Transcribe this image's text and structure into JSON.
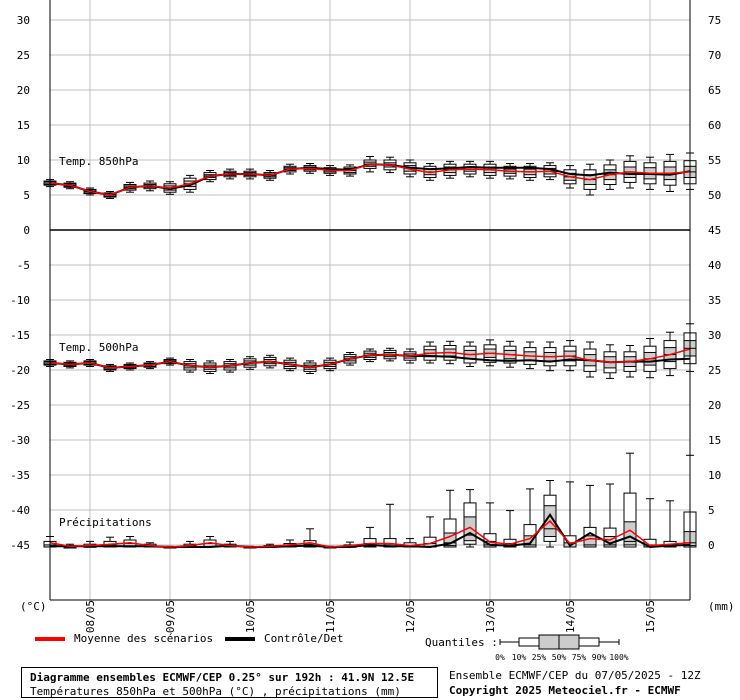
{
  "colors": {
    "mean": "#ff0000",
    "control": "#000000",
    "grid": "#c0c0c0",
    "box": "#cccccc"
  },
  "header": {
    "title": "Diagramme ensembles ECMWF/CEP 0.25° sur 192h : 41.9N 12.5E",
    "subtitle": "Températures 850hPa et 500hPa (°C) , précipitations (mm)",
    "run": "Ensemble ECMWF/CEP du 07/05/2025 - 12Z",
    "copyright": "Copyright 2025 Meteociel.fr - ECMWF"
  },
  "legend": {
    "mean": "Moyenne des scénarios",
    "control": "Contrôle/Det",
    "quantiles": "Quantiles :",
    "quantile_labels": [
      "0%",
      "10%",
      "25%",
      "50%",
      "75%",
      "90%",
      "100%"
    ]
  },
  "axes": {
    "left_unit": "(°C)",
    "right_unit": "(mm)",
    "left_ticks": [
      "30",
      "25",
      "20",
      "15",
      "10",
      "5",
      "0",
      "-5",
      "-10",
      "-15",
      "-20",
      "-25",
      "-30",
      "-35",
      "-40",
      "-45"
    ],
    "right_ticks": [
      "75",
      "70",
      "65",
      "60",
      "55",
      "50",
      "45",
      "40",
      "35",
      "30",
      "25",
      "20",
      "15",
      "10",
      "5",
      "0"
    ],
    "dates": [
      "08/05",
      "09/05",
      "10/05",
      "11/05",
      "12/05",
      "13/05",
      "14/05",
      "15/05"
    ]
  },
  "chart_data": {
    "type": "boxplot",
    "x_step_hours": 6,
    "panels": [
      {
        "name": "Temp. 850hPa",
        "unit": "°C",
        "control": [
          6.7,
          6.4,
          5.5,
          5.0,
          6.1,
          6.3,
          5.9,
          6.4,
          7.7,
          8.0,
          8.0,
          7.8,
          8.7,
          8.9,
          8.7,
          8.6,
          9.4,
          9.3,
          8.9,
          8.7,
          8.8,
          9.0,
          8.9,
          8.9,
          8.9,
          8.7,
          8.0,
          7.8,
          8.2,
          8.0,
          8.0,
          7.9,
          8.4
        ],
        "mean": [
          6.7,
          6.4,
          5.5,
          5.0,
          6.1,
          6.3,
          6.0,
          6.6,
          7.7,
          8.0,
          8.0,
          7.8,
          8.7,
          8.8,
          8.5,
          8.5,
          9.4,
          9.3,
          8.7,
          8.2,
          8.6,
          8.7,
          8.6,
          8.4,
          8.3,
          8.4,
          7.6,
          7.2,
          7.9,
          8.3,
          8.1,
          8.1,
          8.3
        ],
        "boxes": [
          [
            6.2,
            6.4,
            6.5,
            6.7,
            6.9,
            7.0,
            7.2
          ],
          [
            5.9,
            6.1,
            6.2,
            6.4,
            6.6,
            6.7,
            6.9
          ],
          [
            5.0,
            5.2,
            5.3,
            5.5,
            5.7,
            5.8,
            6.0
          ],
          [
            4.5,
            4.7,
            4.8,
            5.0,
            5.2,
            5.3,
            5.5
          ],
          [
            5.4,
            5.7,
            5.9,
            6.1,
            6.3,
            6.5,
            6.8
          ],
          [
            5.6,
            5.9,
            6.1,
            6.3,
            6.5,
            6.7,
            7.0
          ],
          [
            5.1,
            5.4,
            5.7,
            6.0,
            6.3,
            6.6,
            6.9
          ],
          [
            5.4,
            5.8,
            6.2,
            6.6,
            7.0,
            7.4,
            7.8
          ],
          [
            6.9,
            7.2,
            7.5,
            7.7,
            7.9,
            8.2,
            8.5
          ],
          [
            7.3,
            7.6,
            7.8,
            8.0,
            8.2,
            8.4,
            8.7
          ],
          [
            7.3,
            7.6,
            7.8,
            8.0,
            8.2,
            8.4,
            8.7
          ],
          [
            7.1,
            7.4,
            7.6,
            7.8,
            8.0,
            8.2,
            8.5
          ],
          [
            8.0,
            8.3,
            8.5,
            8.7,
            8.9,
            9.1,
            9.4
          ],
          [
            8.1,
            8.4,
            8.6,
            8.8,
            9.0,
            9.2,
            9.5
          ],
          [
            7.8,
            8.1,
            8.3,
            8.5,
            8.7,
            8.9,
            9.2
          ],
          [
            7.7,
            8.0,
            8.2,
            8.5,
            8.8,
            9.0,
            9.3
          ],
          [
            8.3,
            8.8,
            9.1,
            9.4,
            9.7,
            10.0,
            10.5
          ],
          [
            8.2,
            8.6,
            9.0,
            9.3,
            9.6,
            10.0,
            10.4
          ],
          [
            7.6,
            8.0,
            8.4,
            8.8,
            9.2,
            9.6,
            10.0
          ],
          [
            7.1,
            7.5,
            7.9,
            8.3,
            8.7,
            9.1,
            9.5
          ],
          [
            7.4,
            7.8,
            8.2,
            8.6,
            9.0,
            9.4,
            9.8
          ],
          [
            7.6,
            8.0,
            8.4,
            8.7,
            9.0,
            9.4,
            9.8
          ],
          [
            7.4,
            7.8,
            8.2,
            8.6,
            9.0,
            9.4,
            9.8
          ],
          [
            7.3,
            7.7,
            8.1,
            8.4,
            8.7,
            9.1,
            9.5
          ],
          [
            7.1,
            7.5,
            7.9,
            8.3,
            8.7,
            9.1,
            9.5
          ],
          [
            7.2,
            7.6,
            8.0,
            8.4,
            8.8,
            9.2,
            9.6
          ],
          [
            6.0,
            6.6,
            7.1,
            7.6,
            8.1,
            8.6,
            9.2
          ],
          [
            5.0,
            5.8,
            6.5,
            7.2,
            7.9,
            8.6,
            9.4
          ],
          [
            5.8,
            6.5,
            7.2,
            7.9,
            8.6,
            9.3,
            10.0
          ],
          [
            6.0,
            6.8,
            7.5,
            8.3,
            9.0,
            9.8,
            10.6
          ],
          [
            5.8,
            6.6,
            7.3,
            8.1,
            8.9,
            9.6,
            10.4
          ],
          [
            5.5,
            6.4,
            7.2,
            8.1,
            9.0,
            9.8,
            10.8
          ],
          [
            5.8,
            6.6,
            7.5,
            8.3,
            9.1,
            9.9,
            11.0
          ]
        ]
      },
      {
        "name": "Temp. 500hPa",
        "unit": "°C",
        "control": [
          -19.0,
          -19.2,
          -19.0,
          -19.7,
          -19.5,
          -19.3,
          -18.8,
          -19.4,
          -19.6,
          -19.4,
          -19.0,
          -18.8,
          -19.2,
          -19.6,
          -19.2,
          -18.4,
          -17.9,
          -17.8,
          -18.0,
          -18.0,
          -18.1,
          -18.4,
          -18.6,
          -18.7,
          -18.6,
          -18.8,
          -18.5,
          -18.6,
          -18.9,
          -18.8,
          -18.8,
          -18.5,
          -18.4
        ],
        "mean": [
          -19.0,
          -19.2,
          -19.0,
          -19.7,
          -19.5,
          -19.3,
          -18.8,
          -19.4,
          -19.6,
          -19.4,
          -19.0,
          -18.8,
          -19.2,
          -19.6,
          -19.2,
          -18.4,
          -17.9,
          -17.8,
          -18.0,
          -17.6,
          -17.5,
          -17.8,
          -17.6,
          -17.8,
          -18.0,
          -18.1,
          -18.0,
          -18.6,
          -18.9,
          -18.8,
          -18.4,
          -17.8,
          -17.0
        ],
        "boxes": [
          [
            -19.5,
            -19.3,
            -19.2,
            -19.0,
            -18.8,
            -18.7,
            -18.5
          ],
          [
            -19.7,
            -19.5,
            -19.4,
            -19.2,
            -19.0,
            -18.9,
            -18.7
          ],
          [
            -19.5,
            -19.3,
            -19.2,
            -19.0,
            -18.8,
            -18.7,
            -18.5
          ],
          [
            -20.2,
            -20.0,
            -19.9,
            -19.7,
            -19.5,
            -19.4,
            -19.2
          ],
          [
            -20.0,
            -19.8,
            -19.7,
            -19.5,
            -19.3,
            -19.2,
            -19.0
          ],
          [
            -19.8,
            -19.6,
            -19.5,
            -19.3,
            -19.1,
            -19.0,
            -18.8
          ],
          [
            -19.3,
            -19.1,
            -19.0,
            -18.8,
            -18.6,
            -18.5,
            -18.3
          ],
          [
            -20.3,
            -20.0,
            -19.7,
            -19.4,
            -19.1,
            -18.8,
            -18.5
          ],
          [
            -20.5,
            -20.2,
            -19.9,
            -19.6,
            -19.3,
            -19.0,
            -18.7
          ],
          [
            -20.3,
            -20.0,
            -19.7,
            -19.4,
            -19.1,
            -18.8,
            -18.5
          ],
          [
            -19.9,
            -19.6,
            -19.3,
            -19.0,
            -18.7,
            -18.4,
            -18.1
          ],
          [
            -19.7,
            -19.4,
            -19.1,
            -18.8,
            -18.5,
            -18.2,
            -17.9
          ],
          [
            -20.1,
            -19.8,
            -19.5,
            -19.2,
            -18.9,
            -18.6,
            -18.3
          ],
          [
            -20.5,
            -20.2,
            -19.9,
            -19.6,
            -19.3,
            -19.0,
            -18.7
          ],
          [
            -20.1,
            -19.8,
            -19.5,
            -19.2,
            -18.9,
            -18.6,
            -18.3
          ],
          [
            -19.3,
            -19.0,
            -18.7,
            -18.4,
            -18.1,
            -17.8,
            -17.5
          ],
          [
            -18.8,
            -18.5,
            -18.2,
            -17.9,
            -17.6,
            -17.3,
            -17.0
          ],
          [
            -18.7,
            -18.4,
            -18.1,
            -17.8,
            -17.5,
            -17.2,
            -16.9
          ],
          [
            -19.0,
            -18.6,
            -18.3,
            -18.0,
            -17.7,
            -17.4,
            -17.0
          ],
          [
            -19.0,
            -18.6,
            -18.1,
            -17.6,
            -17.1,
            -16.6,
            -16.0
          ],
          [
            -19.1,
            -18.6,
            -18.0,
            -17.5,
            -17.0,
            -16.5,
            -15.9
          ],
          [
            -19.5,
            -19.0,
            -18.4,
            -17.8,
            -17.2,
            -16.6,
            -16.0
          ],
          [
            -19.4,
            -18.9,
            -18.2,
            -17.6,
            -17.0,
            -16.4,
            -15.7
          ],
          [
            -19.6,
            -19.0,
            -18.4,
            -17.8,
            -17.2,
            -16.6,
            -15.9
          ],
          [
            -19.8,
            -19.2,
            -18.6,
            -18.0,
            -17.4,
            -16.8,
            -16.0
          ],
          [
            -20.1,
            -19.4,
            -18.7,
            -18.1,
            -17.5,
            -16.8,
            -16.0
          ],
          [
            -20.1,
            -19.4,
            -18.7,
            -18.0,
            -17.3,
            -16.6,
            -15.8
          ],
          [
            -21.0,
            -20.2,
            -19.4,
            -18.6,
            -17.8,
            -17.0,
            -16.0
          ],
          [
            -21.2,
            -20.4,
            -19.7,
            -18.9,
            -18.1,
            -17.4,
            -16.4
          ],
          [
            -21.0,
            -20.2,
            -19.5,
            -18.8,
            -18.1,
            -17.4,
            -16.5
          ],
          [
            -21.1,
            -20.2,
            -19.3,
            -18.4,
            -17.5,
            -16.6,
            -15.5
          ],
          [
            -20.8,
            -19.8,
            -18.8,
            -17.8,
            -16.8,
            -15.8,
            -14.6
          ],
          [
            -20.2,
            -19.1,
            -18.0,
            -16.9,
            -15.8,
            -14.7,
            -13.4
          ]
        ]
      },
      {
        "name": "Précipitations",
        "unit": "mm",
        "control": [
          0.1,
          0.1,
          0.1,
          0.1,
          0.1,
          0.1,
          0.0,
          0.0,
          0.0,
          0.2,
          0.0,
          0.0,
          0.1,
          0.2,
          0.0,
          0.0,
          0.3,
          0.1,
          0.1,
          0.0,
          0.5,
          2.0,
          0.3,
          0.2,
          0.5,
          4.6,
          0.2,
          2.0,
          0.5,
          1.5,
          0.0,
          0.2,
          0.3
        ],
        "mean": [
          0.6,
          0.1,
          0.2,
          0.4,
          0.6,
          0.2,
          0.0,
          0.2,
          0.6,
          0.2,
          0.0,
          0.1,
          0.3,
          0.6,
          0.0,
          0.2,
          0.5,
          0.5,
          0.2,
          0.5,
          1.5,
          2.8,
          0.7,
          0.4,
          1.2,
          3.7,
          0.5,
          1.2,
          1.0,
          2.4,
          0.2,
          0.4,
          0.6
        ],
        "boxes": [
          [
            0,
            0,
            0,
            0,
            0.3,
            0.8,
            1.5
          ],
          [
            0,
            0,
            0,
            0,
            0,
            0.2,
            0.4
          ],
          [
            0,
            0,
            0,
            0,
            0.1,
            0.4,
            0.8
          ],
          [
            0,
            0,
            0,
            0,
            0.3,
            0.8,
            1.4
          ],
          [
            0,
            0,
            0,
            0,
            0.5,
            1.0,
            1.5
          ],
          [
            0,
            0,
            0,
            0,
            0.2,
            0.4,
            0.6
          ],
          [
            0,
            0,
            0,
            0,
            0,
            0,
            0.1
          ],
          [
            0,
            0,
            0,
            0,
            0.2,
            0.4,
            0.8
          ],
          [
            0,
            0,
            0,
            0,
            0.5,
            1.0,
            1.5
          ],
          [
            0,
            0,
            0,
            0,
            0.2,
            0.4,
            0.8
          ],
          [
            0,
            0,
            0,
            0,
            0,
            0,
            0.1
          ],
          [
            0,
            0,
            0,
            0,
            0.1,
            0.2,
            0.4
          ],
          [
            0,
            0,
            0,
            0,
            0.3,
            0.5,
            1.0
          ],
          [
            0,
            0,
            0,
            0,
            0.4,
            0.9,
            2.6
          ],
          [
            0,
            0,
            0,
            0,
            0,
            0,
            0.1
          ],
          [
            0,
            0,
            0,
            0,
            0.1,
            0.3,
            0.7
          ],
          [
            0,
            0,
            0,
            0.1,
            0.5,
            1.2,
            2.8
          ],
          [
            0,
            0,
            0,
            0,
            0.4,
            1.2,
            6.1
          ],
          [
            0,
            0,
            0,
            0,
            0.2,
            0.6,
            1.2
          ],
          [
            0,
            0,
            0,
            0,
            0.5,
            1.4,
            4.3
          ],
          [
            0,
            0,
            0.2,
            0.6,
            2.0,
            4.0,
            8.1
          ],
          [
            0,
            0.4,
            0.9,
            1.7,
            4.3,
            6.3,
            8.2
          ],
          [
            0,
            0,
            0,
            0.3,
            0.8,
            1.9,
            6.3
          ],
          [
            0,
            0,
            0,
            0.1,
            0.5,
            1.1,
            5.2
          ],
          [
            0,
            0,
            0,
            0.3,
            1.6,
            3.2,
            8.3
          ],
          [
            0,
            0.8,
            1.5,
            2.6,
            5.9,
            7.4,
            9.5
          ],
          [
            0,
            0,
            0,
            0,
            0.6,
            1.6,
            9.3
          ],
          [
            0,
            0,
            0,
            0.3,
            1.6,
            2.8,
            8.8
          ],
          [
            0,
            0,
            0,
            0.3,
            1.5,
            2.7,
            9.0
          ],
          [
            0,
            0,
            0.3,
            0.8,
            3.6,
            7.7,
            13.4
          ],
          [
            0,
            0,
            0,
            0,
            0.3,
            1.1,
            6.9
          ],
          [
            0,
            0,
            0,
            0,
            0.2,
            0.8,
            6.6
          ],
          [
            0,
            0,
            0.2,
            0.6,
            2.2,
            5.0,
            13.1
          ]
        ]
      }
    ]
  }
}
